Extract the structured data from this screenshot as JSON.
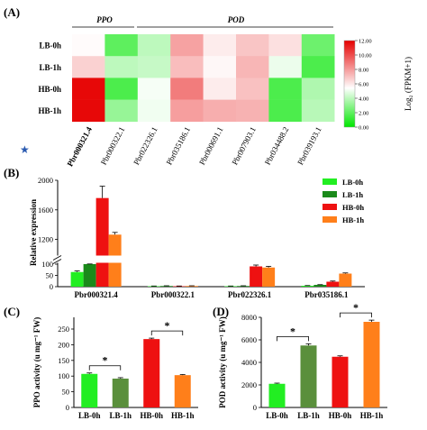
{
  "panels": {
    "a": "(A)",
    "b": "(B)",
    "c": "(C)",
    "d": "(D)"
  },
  "heatmap": {
    "group_labels": [
      "PPO",
      "POD"
    ],
    "rows": [
      "LB-0h",
      "LB-1h",
      "HB-0h",
      "HB-1h"
    ],
    "cols": [
      "Pbr000321.4",
      "Pbr000322.1",
      "Pbr022326.1",
      "Pbr035186.1",
      "Pbr000691.1",
      "Pbr007903.1",
      "Pbr034488.2",
      "Pbr039193.1"
    ],
    "starred_col": "Pbr000321.4",
    "values": [
      [
        5.5,
        2.0,
        4.0,
        7.8,
        5.9,
        6.9,
        6.2,
        2.3
      ],
      [
        6.6,
        4.0,
        4.2,
        7.1,
        5.6,
        7.3,
        5.0,
        1.6
      ],
      [
        11.8,
        1.6,
        5.2,
        8.8,
        5.9,
        7.0,
        1.6,
        3.7
      ],
      [
        11.8,
        3.2,
        5.1,
        7.9,
        7.5,
        7.4,
        1.6,
        3.9
      ]
    ],
    "colorbar": {
      "title": "Log₂ (FPKM+1)",
      "ticks": [
        "12.00",
        "10.00",
        "8.00",
        "6.00",
        "4.00",
        "2.00",
        "0.00"
      ],
      "min": 0,
      "max": 12,
      "colors": {
        "low": "#00e600",
        "mid": "#ffffff",
        "high": "#e60000"
      }
    }
  },
  "chart_data": [
    {
      "id": "B",
      "type": "bar",
      "categories": [
        "Pbr000321.4",
        "Pbr000322.1",
        "Pbr022326.1",
        "Pbr035186.1"
      ],
      "series": [
        {
          "name": "LB-0h",
          "color": "#22ee22",
          "values": [
            65,
            2,
            2,
            4
          ],
          "errors": [
            5,
            1,
            1,
            1
          ]
        },
        {
          "name": "LB-1h",
          "color": "#1a8a1a",
          "values": [
            105,
            3,
            3,
            8
          ],
          "errors": [
            10,
            1,
            1,
            1
          ]
        },
        {
          "name": "HB-0h",
          "color": "#ee1111",
          "values": [
            1760,
            2,
            90,
            22
          ],
          "errors": [
            160,
            1,
            6,
            3
          ]
        },
        {
          "name": "HB-1h",
          "color": "#ff7f1a",
          "values": [
            1265,
            3,
            85,
            58
          ],
          "errors": [
            30,
            1,
            5,
            3
          ]
        }
      ],
      "ylabel": "Relative expression",
      "yticks_upper": [
        1200,
        1600,
        2000
      ],
      "yticks_lower": [
        0,
        50,
        100
      ],
      "axis_break": [
        100,
        1000
      ],
      "ylim": [
        0,
        2000
      ],
      "legend": "top-right"
    },
    {
      "id": "C",
      "type": "bar",
      "categories": [
        "LB-0h",
        "LB-1h",
        "HB-0h",
        "HB-1h"
      ],
      "values": [
        107,
        92,
        218,
        103
      ],
      "errors": [
        3,
        3,
        3,
        2
      ],
      "colors": [
        "#22ee22",
        "#5a8f3c",
        "#ee1111",
        "#ff7f1a"
      ],
      "ylabel": "PPO activity (u mg⁻¹ FW)",
      "ylim": [
        0,
        250
      ],
      "yticks": [
        0,
        50,
        100,
        150,
        200,
        250
      ],
      "significance": [
        {
          "pair": [
            0,
            1
          ],
          "label": "*"
        },
        {
          "pair": [
            2,
            3
          ],
          "label": "*"
        }
      ]
    },
    {
      "id": "D",
      "type": "bar",
      "categories": [
        "LB-0h",
        "LB-1h",
        "HB-0h",
        "HB-1h"
      ],
      "values": [
        2100,
        5500,
        4500,
        7600
      ],
      "errors": [
        60,
        150,
        80,
        150
      ],
      "colors": [
        "#22ee22",
        "#5a8f3c",
        "#ee1111",
        "#ff7f1a"
      ],
      "ylabel": "POD activity (u mg⁻¹ FW)",
      "ylim": [
        0,
        8000
      ],
      "yticks": [
        0,
        2000,
        4000,
        6000,
        8000
      ],
      "significance": [
        {
          "pair": [
            0,
            1
          ],
          "label": "*"
        },
        {
          "pair": [
            2,
            3
          ],
          "label": "*"
        }
      ]
    }
  ]
}
